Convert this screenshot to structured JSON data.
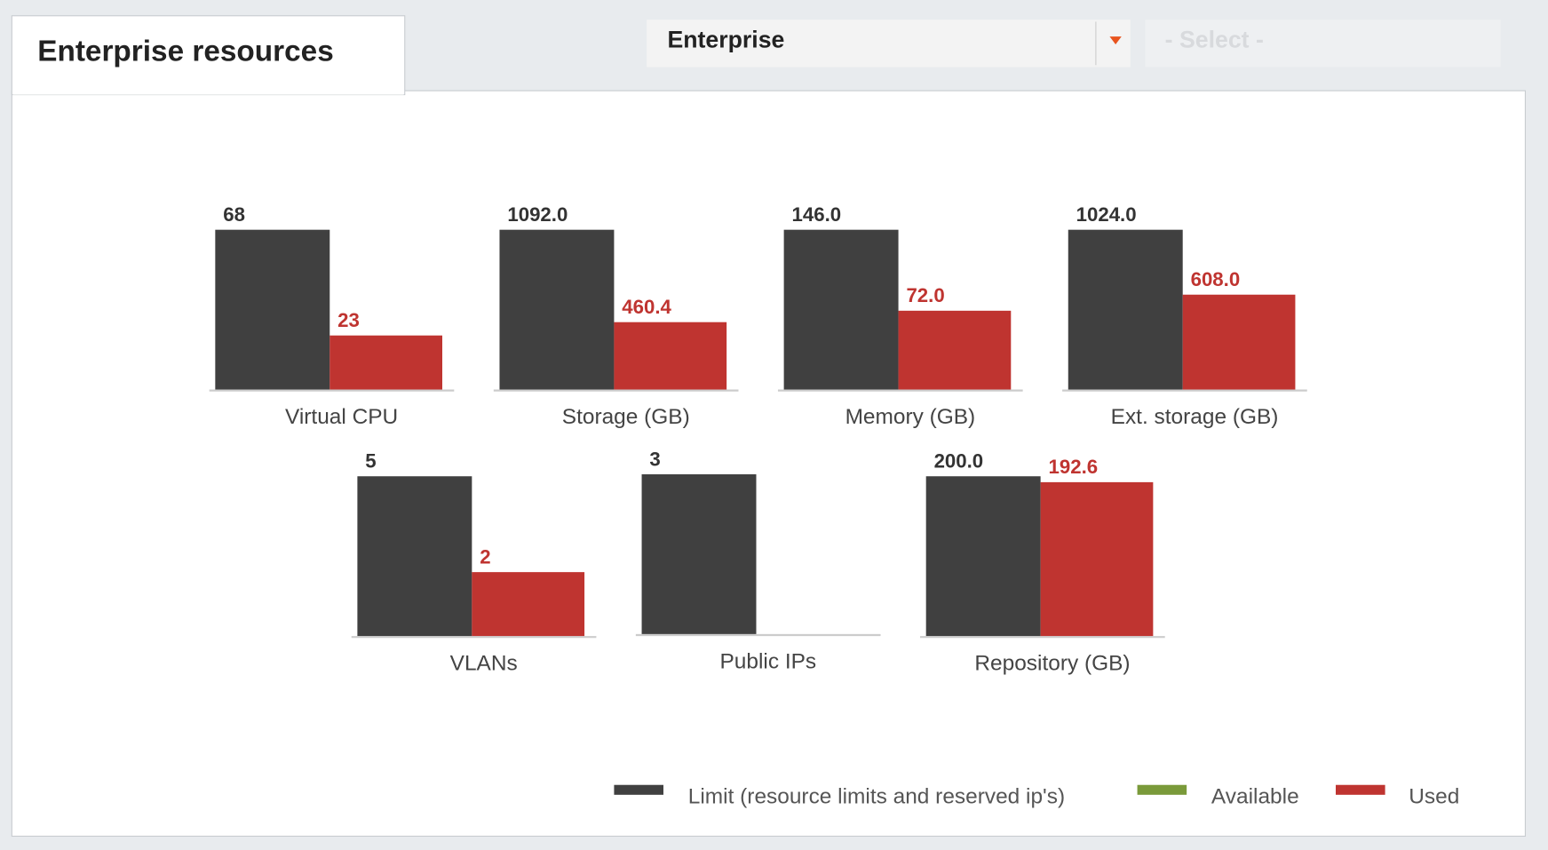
{
  "header": {
    "tab_title": "Enterprise resources",
    "dropdown": "Enterprise",
    "select_placeholder": "- Select -"
  },
  "chart_data": {
    "type": "bar",
    "categories": [
      "Virtual CPU",
      "Storage (GB)",
      "Memory (GB)",
      "Ext. storage (GB)",
      "VLANs",
      "Public IPs",
      "Repository (GB)"
    ],
    "series": [
      {
        "name": "Limit (resource limits and reserved ip's)",
        "color": "#404040",
        "values": [
          68,
          1092,
          146,
          1024,
          5,
          3,
          200
        ],
        "value_labels": [
          "68",
          "1092.0",
          "146.0",
          "1024.0",
          "5",
          "3",
          "200.0"
        ]
      },
      {
        "name": "Available",
        "color": "#7a9a3a",
        "values": [
          null,
          null,
          null,
          null,
          null,
          null,
          null
        ]
      },
      {
        "name": "Used",
        "color": "#bf3430",
        "values": [
          23,
          460.4,
          72,
          608,
          2,
          null,
          192.6
        ],
        "value_labels": [
          "23",
          "460.4",
          "72.0",
          "608.0",
          "2",
          null,
          "192.6"
        ]
      }
    ]
  }
}
